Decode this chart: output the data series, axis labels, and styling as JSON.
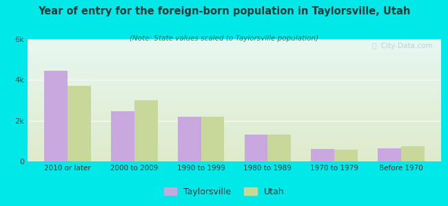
{
  "title": "Year of entry for the foreign-born population in Taylorsville, Utah",
  "subtitle": "(Note: State values scaled to Taylorsville population)",
  "categories": [
    "2010 or later",
    "2000 to 2009",
    "1990 to 1999",
    "1980 to 1989",
    "1970 to 1979",
    "Before 1970"
  ],
  "taylorsville_values": [
    4450,
    2450,
    2200,
    1300,
    600,
    650
  ],
  "utah_values": [
    3700,
    3000,
    2200,
    1300,
    580,
    730
  ],
  "taylorsville_color": "#c9a8e0",
  "utah_color": "#c8d89a",
  "background_color": "#00e8e8",
  "ylim": [
    0,
    6000
  ],
  "yticks": [
    0,
    2000,
    4000,
    6000
  ],
  "ytick_labels": [
    "0",
    "2k",
    "4k",
    "6k"
  ],
  "bar_width": 0.35,
  "legend_labels": [
    "Taylorsville",
    "Utah"
  ],
  "watermark": "ⓘ  City-Data.com"
}
